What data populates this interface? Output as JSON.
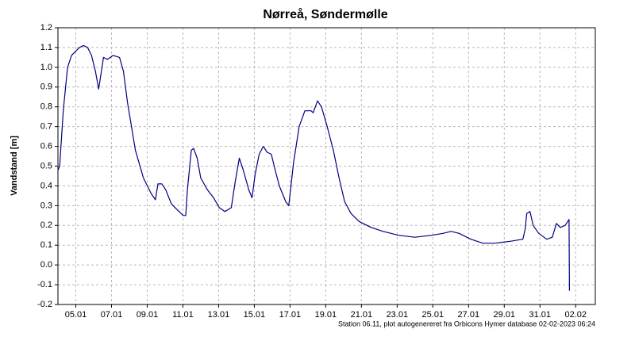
{
  "chart_data": {
    "type": "line",
    "title": "Nørreå, Søndermølle",
    "y_label": "Vandstand [m]",
    "footnote": "Station 06.11, plot autogenereret fra Orbicons Hymer database 02-02-2023 06:24",
    "grid": true,
    "xlim": [
      4,
      34.1
    ],
    "ylim": [
      -0.2,
      1.2
    ],
    "xticks": [
      {
        "value": 5,
        "label": "05.01"
      },
      {
        "value": 7,
        "label": "07.01"
      },
      {
        "value": 9,
        "label": "09.01"
      },
      {
        "value": 11,
        "label": "11.01"
      },
      {
        "value": 13,
        "label": "13.01"
      },
      {
        "value": 15,
        "label": "15.01"
      },
      {
        "value": 17,
        "label": "17.01"
      },
      {
        "value": 19,
        "label": "19.01"
      },
      {
        "value": 21,
        "label": "21.01"
      },
      {
        "value": 23,
        "label": "23.01"
      },
      {
        "value": 25,
        "label": "25.01"
      },
      {
        "value": 27,
        "label": "27.01"
      },
      {
        "value": 29,
        "label": "29.01"
      },
      {
        "value": 31,
        "label": "31.01"
      },
      {
        "value": 33,
        "label": "02.02"
      }
    ],
    "yticks": [
      1.2,
      1.1,
      {
        "value": 1.0,
        "label": "1.0"
      },
      0.9,
      0.8,
      0.7,
      0.6,
      0.5,
      0.4,
      0.3,
      0.2,
      0.1,
      {
        "value": 0.0,
        "label": "0.0"
      },
      -0.1,
      -0.2
    ],
    "series": [
      {
        "name": "Vandstand",
        "color": "#000080",
        "x": [
          4.0,
          4.1,
          4.3,
          4.54,
          4.76,
          4.98,
          5.2,
          5.43,
          5.66,
          5.88,
          6.1,
          6.28,
          6.4,
          6.55,
          6.77,
          7.09,
          7.45,
          7.67,
          7.9,
          8.34,
          8.79,
          9.23,
          9.46,
          9.6,
          9.82,
          10.04,
          10.35,
          10.67,
          11.02,
          11.16,
          11.25,
          11.47,
          11.6,
          11.8,
          12.0,
          12.37,
          12.72,
          13.04,
          13.35,
          13.71,
          13.93,
          14.16,
          14.38,
          14.69,
          14.87,
          15.05,
          15.27,
          15.5,
          15.72,
          15.95,
          16.17,
          16.4,
          16.76,
          16.93,
          17.2,
          17.51,
          17.83,
          18.18,
          18.3,
          18.54,
          18.76,
          19.08,
          19.43,
          19.75,
          20.06,
          20.42,
          20.87,
          21.54,
          22.21,
          23.1,
          24.0,
          24.9,
          25.57,
          26.02,
          26.47,
          27.13,
          27.8,
          28.47,
          29.37,
          30.04,
          30.17,
          30.26,
          30.44,
          30.62,
          30.93,
          31.38,
          31.69,
          31.92,
          32.14,
          32.41,
          32.63,
          32.65
        ],
        "values": [
          0.48,
          0.5,
          0.78,
          1.0,
          1.06,
          1.08,
          1.1,
          1.11,
          1.1,
          1.06,
          0.98,
          0.89,
          0.96,
          1.05,
          1.04,
          1.06,
          1.05,
          0.98,
          0.82,
          0.58,
          0.44,
          0.36,
          0.33,
          0.41,
          0.41,
          0.38,
          0.31,
          0.28,
          0.25,
          0.25,
          0.38,
          0.58,
          0.59,
          0.54,
          0.44,
          0.38,
          0.34,
          0.29,
          0.27,
          0.29,
          0.42,
          0.54,
          0.48,
          0.38,
          0.34,
          0.46,
          0.56,
          0.6,
          0.57,
          0.56,
          0.48,
          0.4,
          0.32,
          0.3,
          0.52,
          0.7,
          0.78,
          0.78,
          0.77,
          0.83,
          0.8,
          0.7,
          0.58,
          0.44,
          0.32,
          0.26,
          0.22,
          0.19,
          0.17,
          0.15,
          0.14,
          0.15,
          0.16,
          0.17,
          0.16,
          0.13,
          0.11,
          0.11,
          0.12,
          0.13,
          0.18,
          0.26,
          0.27,
          0.2,
          0.16,
          0.13,
          0.14,
          0.21,
          0.19,
          0.2,
          0.23,
          -0.13
        ]
      }
    ]
  }
}
